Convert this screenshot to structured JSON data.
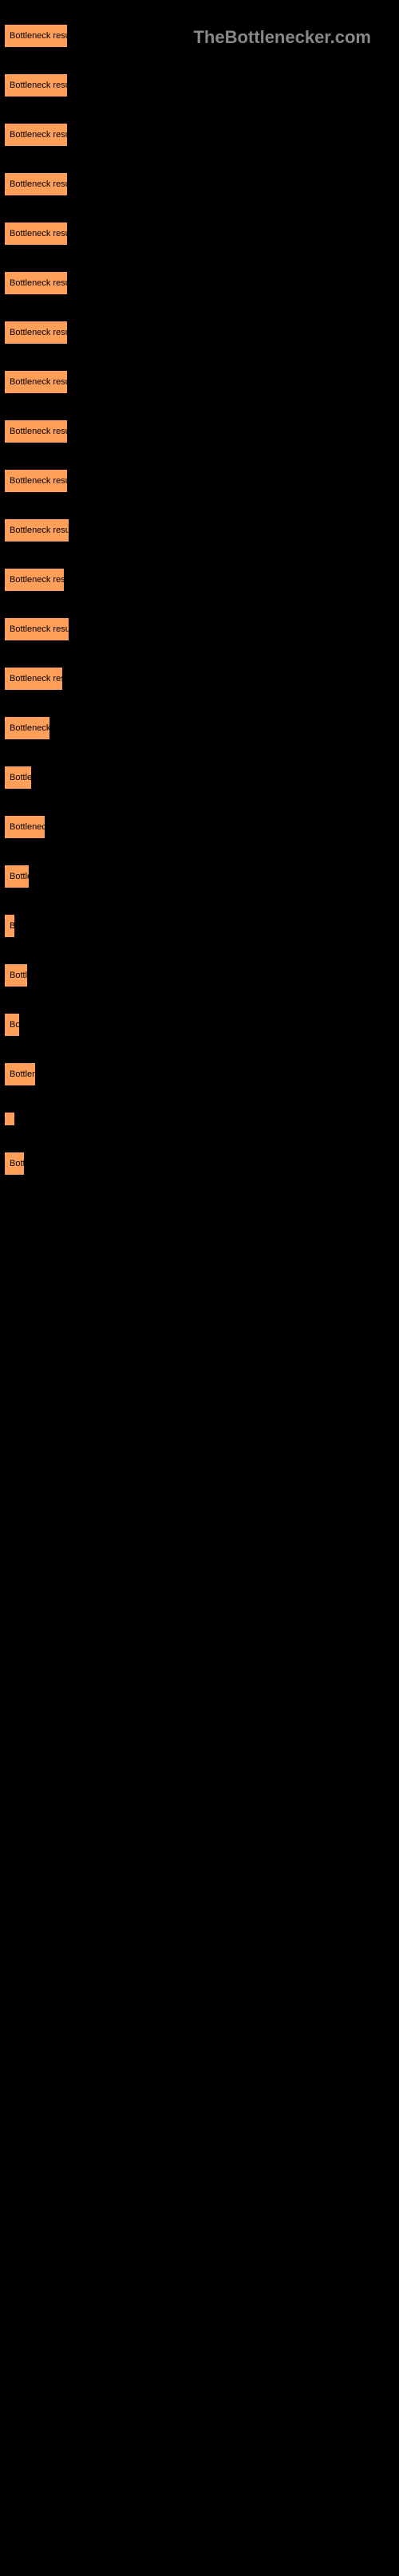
{
  "watermark": "TheBottlenecker.com",
  "chart": {
    "type": "bar",
    "bar_color": "#ff9f5a",
    "bar_border_color": "#000000",
    "background_color": "#000000",
    "text_color": "#000000",
    "font_size": 11,
    "watermark_color": "#888888",
    "bars": [
      {
        "label": "Bottleneck result",
        "width": 80
      },
      {
        "label": "Bottleneck result",
        "width": 80
      },
      {
        "label": "Bottleneck result",
        "width": 80
      },
      {
        "label": "Bottleneck result",
        "width": 80
      },
      {
        "label": "Bottleneck result",
        "width": 80
      },
      {
        "label": "Bottleneck result",
        "width": 80
      },
      {
        "label": "Bottleneck result",
        "width": 80
      },
      {
        "label": "Bottleneck result",
        "width": 80
      },
      {
        "label": "Bottleneck result",
        "width": 80
      },
      {
        "label": "Bottleneck result",
        "width": 80
      },
      {
        "label": "Bottleneck result",
        "width": 82
      },
      {
        "label": "Bottleneck resul",
        "width": 76
      },
      {
        "label": "Bottleneck result",
        "width": 82
      },
      {
        "label": "Bottleneck resu",
        "width": 74
      },
      {
        "label": "Bottleneck r",
        "width": 58
      },
      {
        "label": "Bottlen",
        "width": 35
      },
      {
        "label": "Bottleneck",
        "width": 52
      },
      {
        "label": "Bottle",
        "width": 32
      },
      {
        "label": "B",
        "width": 12
      },
      {
        "label": "Bottle",
        "width": 30
      },
      {
        "label": "Bot",
        "width": 20
      },
      {
        "label": "Bottlene",
        "width": 40
      },
      {
        "label": "",
        "width": 6
      },
      {
        "label": "Bottl",
        "width": 26
      }
    ]
  }
}
